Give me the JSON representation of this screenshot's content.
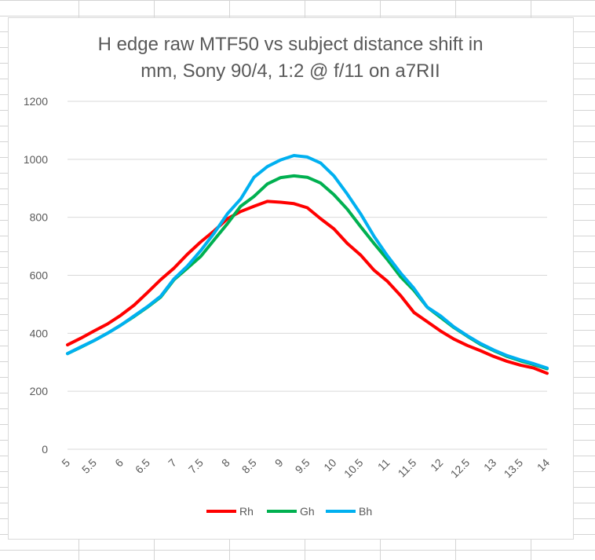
{
  "colors": {
    "sheet_grid": "#d4d4d4",
    "chart_border": "#d9d9d9",
    "plot_grid": "#d9d9d9",
    "text": "#595959"
  },
  "chart_data": {
    "type": "line",
    "title_lines": [
      "H edge raw MTF50 vs subject distance shift in",
      "mm, Sony 90/4, 1:2 @ f/11 on a7RII"
    ],
    "xlabel": "",
    "ylabel": "",
    "ylim": [
      0,
      1200
    ],
    "yticks": [
      0,
      200,
      400,
      600,
      800,
      1000,
      1200
    ],
    "grid": true,
    "legend_position": "bottom",
    "x": [
      5,
      5.25,
      5.5,
      5.75,
      6,
      6.25,
      6.5,
      6.75,
      7,
      7.25,
      7.5,
      7.75,
      8,
      8.25,
      8.5,
      8.75,
      9,
      9.25,
      9.5,
      9.75,
      10,
      10.25,
      10.5,
      10.75,
      11,
      11.25,
      11.5,
      11.75,
      12,
      12.25,
      12.5,
      12.75,
      13,
      13.25,
      13.5,
      13.75,
      14
    ],
    "x_tick_labels": [
      "5",
      "5.5",
      "6",
      "6.5",
      "7",
      "7.5",
      "8",
      "8.5",
      "9",
      "9.5",
      "10",
      "10.5",
      "11",
      "11.5",
      "12",
      "12.5",
      "13",
      "13.5",
      "14"
    ],
    "series": [
      {
        "name": "Rh",
        "color": "#ff0000",
        "values": [
          360,
          383,
          408,
          432,
          462,
          497,
          540,
          585,
          625,
          673,
          715,
          753,
          795,
          820,
          838,
          855,
          852,
          847,
          833,
          795,
          760,
          710,
          670,
          618,
          580,
          530,
          472,
          440,
          408,
          380,
          358,
          340,
          320,
          303,
          290,
          280,
          262
        ]
      },
      {
        "name": "Gh",
        "color": "#00b050",
        "values": [
          330,
          352,
          375,
          400,
          428,
          458,
          490,
          525,
          585,
          625,
          665,
          722,
          778,
          838,
          872,
          915,
          937,
          943,
          938,
          918,
          878,
          828,
          768,
          710,
          655,
          595,
          548,
          490,
          455,
          420,
          390,
          362,
          340,
          320,
          305,
          292,
          278
        ]
      },
      {
        "name": "Bh",
        "color": "#00b0f0",
        "values": [
          330,
          353,
          375,
          400,
          428,
          460,
          492,
          528,
          588,
          632,
          685,
          745,
          812,
          863,
          938,
          975,
          998,
          1013,
          1008,
          987,
          943,
          880,
          812,
          735,
          668,
          608,
          555,
          490,
          460,
          422,
          392,
          365,
          342,
          323,
          308,
          295,
          280
        ]
      }
    ]
  }
}
